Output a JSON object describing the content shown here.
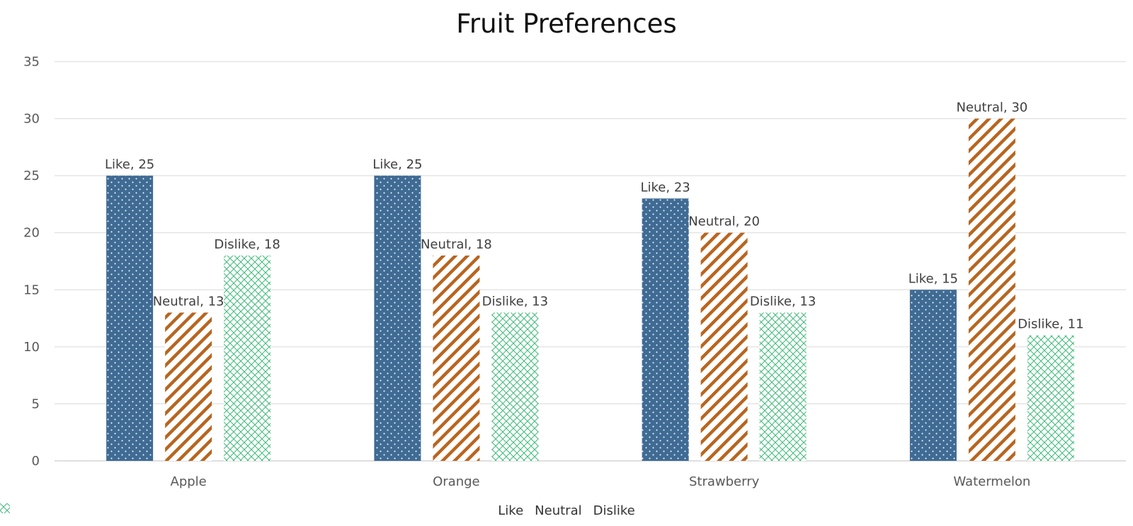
{
  "chart_data": {
    "type": "bar",
    "title": "Fruit Preferences",
    "categories": [
      "Apple",
      "Orange",
      "Strawberry",
      "Watermelon"
    ],
    "series": [
      {
        "name": "Like",
        "values": [
          25,
          25,
          23,
          15
        ],
        "color": "#3f6b94",
        "pattern": "dots"
      },
      {
        "name": "Neutral",
        "values": [
          13,
          18,
          20,
          30
        ],
        "color": "#b8651f",
        "pattern": "diagonal-stripes"
      },
      {
        "name": "Dislike",
        "values": [
          18,
          13,
          13,
          11
        ],
        "color": "#3dbb76",
        "pattern": "crosshatch"
      }
    ],
    "ylim": [
      0,
      35
    ],
    "yticks": [
      0,
      5,
      10,
      15,
      20,
      25,
      30,
      35
    ],
    "grid": true,
    "legend_position": "bottom",
    "data_labels": "series-name, value"
  }
}
